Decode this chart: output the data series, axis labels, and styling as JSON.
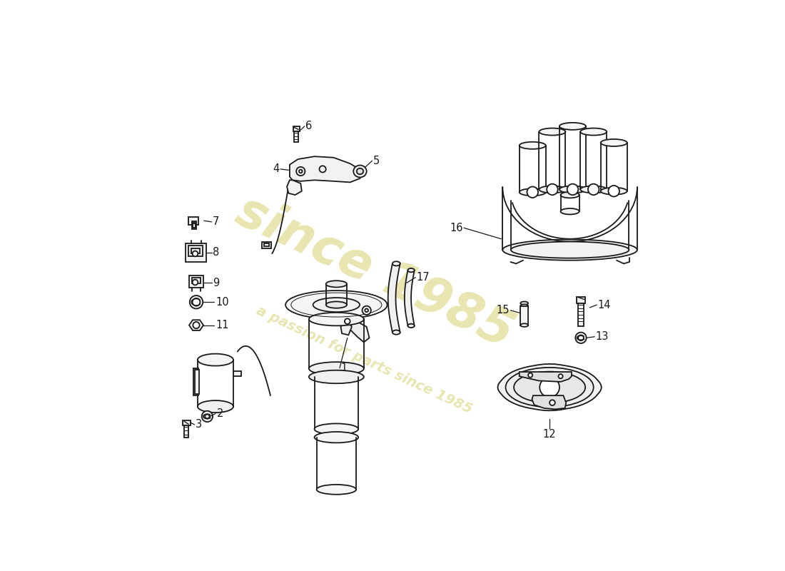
{
  "background_color": "#ffffff",
  "line_color": "#1a1a1a",
  "watermark_color": "#e8e5b0",
  "figsize": [
    11.0,
    8.0
  ],
  "dpi": 100,
  "lw": 1.3
}
